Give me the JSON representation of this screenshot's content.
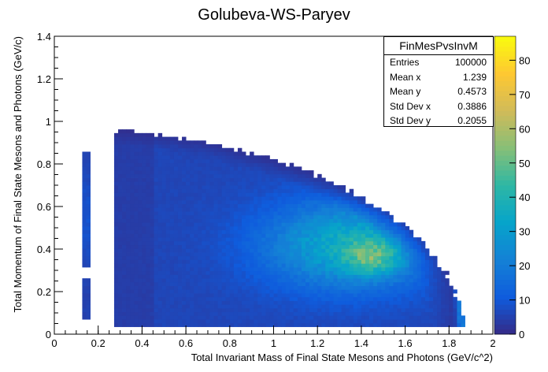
{
  "chart_data": {
    "type": "heatmap",
    "title": "Golubeva-WS-Paryev",
    "xlabel": "Total Invariant Mass of Final State Mesons and Photons (GeV/c^2)",
    "ylabel": "Total Momentum of Final State Mesons and Photons (GeV/c)",
    "xlim": [
      0,
      2
    ],
    "ylim": [
      0,
      1.4
    ],
    "x_ticks": [
      "0",
      "0.2",
      "0.4",
      "0.6",
      "0.8",
      "1",
      "1.2",
      "1.4",
      "1.6",
      "1.8",
      "2"
    ],
    "y_ticks": [
      "0",
      "0.2",
      "0.4",
      "0.6",
      "0.8",
      "1",
      "1.2",
      "1.4"
    ],
    "colorbar": {
      "min": 0,
      "max": 87,
      "ticks": [
        "0",
        "10",
        "20",
        "30",
        "40",
        "50",
        "60",
        "70",
        "80"
      ],
      "colors": [
        "#352a87",
        "#0f5cdd",
        "#1481d6",
        "#06a4ca",
        "#2eb7a4",
        "#87bf77",
        "#d1bb59",
        "#fec832",
        "#f9fb0e"
      ]
    },
    "stats": {
      "name": "FinMesPvsInvM",
      "rows": [
        {
          "label": "Entries",
          "value": "100000"
        },
        {
          "label": "Mean x",
          "value": "1.239"
        },
        {
          "label": "Mean y",
          "value": "0.4573"
        },
        {
          "label": "Std Dev x",
          "value": "0.3886"
        },
        {
          "label": "Std Dev y",
          "value": "0.2055"
        }
      ]
    },
    "grid": false,
    "legend": "top-right"
  }
}
